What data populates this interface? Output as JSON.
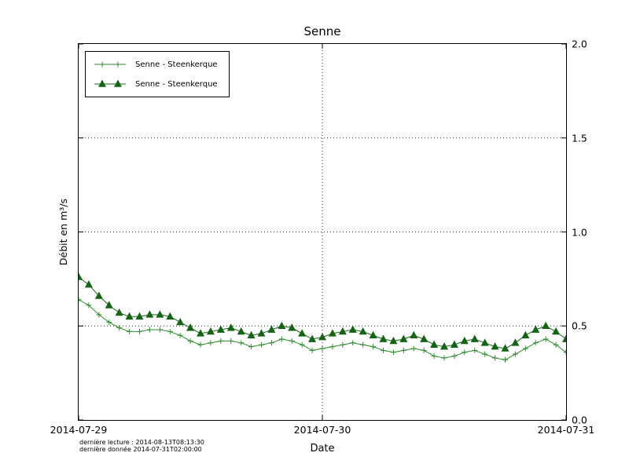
{
  "figure": {
    "footer_line1": "dernière lecture : 2014-08-13T08:13:30",
    "footer_line2": "dernière donnée  2014-07-31T02:00:00"
  },
  "chart_data": {
    "type": "line",
    "title": "Senne",
    "xlabel": "Date",
    "ylabel": "Débit en m³/s",
    "xlim_hours": [
      0,
      48
    ],
    "ylim": [
      0.0,
      2.0
    ],
    "grid": true,
    "grid_y": [
      0.5,
      1.0,
      1.5
    ],
    "grid_x_hours": [
      24
    ],
    "yticks": [
      {
        "value": 0.0,
        "label": "0.0"
      },
      {
        "value": 0.5,
        "label": "0.5"
      },
      {
        "value": 1.0,
        "label": "1.0"
      },
      {
        "value": 1.5,
        "label": "1.5"
      },
      {
        "value": 2.0,
        "label": "2.0"
      }
    ],
    "xticks": [
      {
        "hour": 0,
        "label": "2014-07-29"
      },
      {
        "hour": 24,
        "label": "2014-07-30"
      },
      {
        "hour": 48,
        "label": "2014-07-31"
      }
    ],
    "legend_position": "upper-left",
    "x_hours": [
      0,
      1,
      2,
      3,
      4,
      5,
      6,
      7,
      8,
      9,
      10,
      11,
      12,
      13,
      14,
      15,
      16,
      17,
      18,
      19,
      20,
      21,
      22,
      23,
      24,
      25,
      26,
      27,
      28,
      29,
      30,
      31,
      32,
      33,
      34,
      35,
      36,
      37,
      38,
      39,
      40,
      41,
      42,
      43,
      44,
      45,
      46,
      47,
      48
    ],
    "series": [
      {
        "name": "Senne - Steenkerque",
        "marker": "plus",
        "color": "#2e8b2e",
        "values": [
          0.64,
          0.61,
          0.56,
          0.52,
          0.49,
          0.47,
          0.47,
          0.48,
          0.48,
          0.47,
          0.45,
          0.42,
          0.4,
          0.41,
          0.42,
          0.42,
          0.41,
          0.39,
          0.4,
          0.41,
          0.43,
          0.42,
          0.4,
          0.37,
          0.38,
          0.39,
          0.4,
          0.41,
          0.4,
          0.39,
          0.37,
          0.36,
          0.37,
          0.38,
          0.37,
          0.34,
          0.33,
          0.34,
          0.36,
          0.37,
          0.35,
          0.33,
          0.32,
          0.35,
          0.38,
          0.41,
          0.43,
          0.4,
          0.36
        ]
      },
      {
        "name": "Senne - Steenkerque",
        "marker": "triangle",
        "color": "#156415",
        "values": [
          0.76,
          0.72,
          0.66,
          0.61,
          0.57,
          0.55,
          0.55,
          0.56,
          0.56,
          0.55,
          0.52,
          0.49,
          0.46,
          0.47,
          0.48,
          0.49,
          0.47,
          0.45,
          0.46,
          0.48,
          0.5,
          0.49,
          0.46,
          0.43,
          0.44,
          0.46,
          0.47,
          0.48,
          0.47,
          0.45,
          0.43,
          0.42,
          0.43,
          0.45,
          0.43,
          0.4,
          0.39,
          0.4,
          0.42,
          0.43,
          0.41,
          0.39,
          0.38,
          0.41,
          0.45,
          0.48,
          0.5,
          0.47,
          0.43
        ]
      }
    ]
  }
}
